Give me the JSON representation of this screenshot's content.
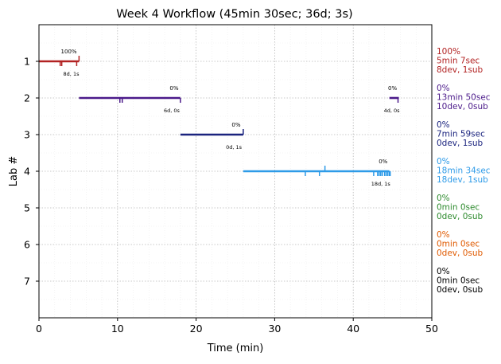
{
  "chart_data": {
    "type": "timeline",
    "title": "Week 4 Workflow (45min 30sec; 36d; 3s)",
    "xlabel": "Time (min)",
    "ylabel": "Lab #",
    "xlim": [
      0,
      50
    ],
    "ylim": [
      8,
      0
    ],
    "x_ticks": [
      0,
      10,
      20,
      30,
      40,
      50
    ],
    "y_ticks": [
      1,
      2,
      3,
      4,
      5,
      6,
      7
    ],
    "grid": true,
    "labs": [
      {
        "lab": 1,
        "color": "#b22222",
        "segments": [
          [
            0,
            5.1
          ]
        ],
        "dev_markers": [
          2.7,
          2.9,
          4.8
        ],
        "sub_markers": [
          5.1
        ],
        "pct_label": "100%",
        "pct_x": 3.8,
        "count_label": "8d, 1s",
        "count_x": 4.1,
        "summary": [
          "100%",
          "5min 7sec",
          "8dev, 1sub"
        ]
      },
      {
        "lab": 2,
        "color": "#4b1a8a",
        "segments": [
          [
            5.1,
            18.0
          ],
          [
            44.6,
            45.8
          ]
        ],
        "dev_markers": [
          10.3,
          10.6,
          18.0,
          45.7
        ],
        "sub_markers": [],
        "pct_label": "0%",
        "pct_label_2": "0%",
        "pct_x": 17.2,
        "pct_x_2": 45.0,
        "count_label": "6d, 0s",
        "count_label_2": "4d, 0s",
        "count_x": 16.9,
        "count_x_2": 44.9,
        "summary": [
          "0%",
          "13min 50sec",
          "10dev, 0sub"
        ]
      },
      {
        "lab": 3,
        "color": "#1a237e",
        "segments": [
          [
            18.0,
            26.0
          ]
        ],
        "dev_markers": [],
        "sub_markers": [
          26.0
        ],
        "pct_label": "0%",
        "pct_x": 25.1,
        "count_label": "0d, 1s",
        "count_x": 24.8,
        "summary": [
          "0%",
          "7min 59sec",
          "0dev, 1sub"
        ]
      },
      {
        "lab": 4,
        "color": "#2e9be8",
        "segments": [
          [
            26.0,
            44.6
          ]
        ],
        "dev_markers": [
          33.9,
          35.7,
          42.6,
          43.1,
          43.3,
          43.5,
          43.7,
          44.0,
          44.2,
          44.4,
          44.6,
          44.7
        ],
        "sub_markers": [
          36.4
        ],
        "pct_label": "0%",
        "pct_x": 43.8,
        "count_label": "18d, 1s",
        "count_x": 43.5,
        "summary": [
          "0%",
          "18min 34sec",
          "18dev, 1sub"
        ]
      },
      {
        "lab": 5,
        "color": "#2e8b2e",
        "segments": [],
        "dev_markers": [],
        "sub_markers": [],
        "summary": [
          "0%",
          "0min 0sec",
          "0dev, 0sub"
        ]
      },
      {
        "lab": 6,
        "color": "#e05a00",
        "segments": [],
        "dev_markers": [],
        "sub_markers": [],
        "summary": [
          "0%",
          "0min 0sec",
          "0dev, 0sub"
        ]
      },
      {
        "lab": 7,
        "color": "#000000",
        "segments": [],
        "dev_markers": [],
        "sub_markers": [],
        "summary": [
          "0%",
          "0min 0sec",
          "0dev, 0sub"
        ]
      }
    ]
  }
}
